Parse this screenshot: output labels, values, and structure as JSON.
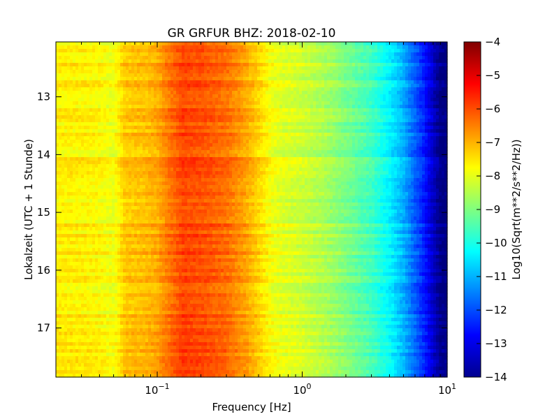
{
  "chart_data": {
    "type": "heatmap",
    "title": "GR GRFUR BHZ: 2018-02-10",
    "xlabel": "Frequency [Hz]",
    "ylabel": "Lokalzeit (UTC + 1 Stunde)",
    "x_scale": "log",
    "x_range": [
      0.02,
      10
    ],
    "x_ticks": [
      {
        "value": 0.1,
        "base": "10",
        "exp": "−1"
      },
      {
        "value": 1,
        "base": "10",
        "exp": "0"
      },
      {
        "value": 10,
        "base": "10",
        "exp": "1"
      }
    ],
    "y_range": [
      12.05,
      17.85
    ],
    "y_inverted": true,
    "y_ticks": [
      "13",
      "14",
      "15",
      "16",
      "17"
    ],
    "colorbar": {
      "label": "Log10(Sqrt(m**2/s**2/Hz))",
      "range": [
        -14,
        -4
      ],
      "ticks": [
        "−4",
        "−5",
        "−6",
        "−7",
        "−8",
        "−9",
        "−10",
        "−11",
        "−12",
        "−13",
        "−14"
      ],
      "colormap": "jet"
    },
    "spectrum_profile": {
      "frequency_hz": [
        0.02,
        0.03,
        0.04,
        0.05,
        0.06,
        0.08,
        0.1,
        0.12,
        0.15,
        0.2,
        0.3,
        0.4,
        0.5,
        0.6,
        0.7,
        1.0,
        1.5,
        2.0,
        3.0,
        4.0,
        5.0,
        6.0,
        7.0,
        8.0,
        9.0,
        10.0
      ],
      "level": [
        -7.6,
        -7.6,
        -7.7,
        -7.9,
        -7.2,
        -7.1,
        -6.9,
        -6.4,
        -5.9,
        -6.0,
        -6.3,
        -6.8,
        -7.3,
        -7.8,
        -8.0,
        -8.2,
        -8.6,
        -9.0,
        -9.6,
        -10.3,
        -11.0,
        -11.8,
        -12.5,
        -13.3,
        -13.9,
        -14.0
      ]
    }
  }
}
